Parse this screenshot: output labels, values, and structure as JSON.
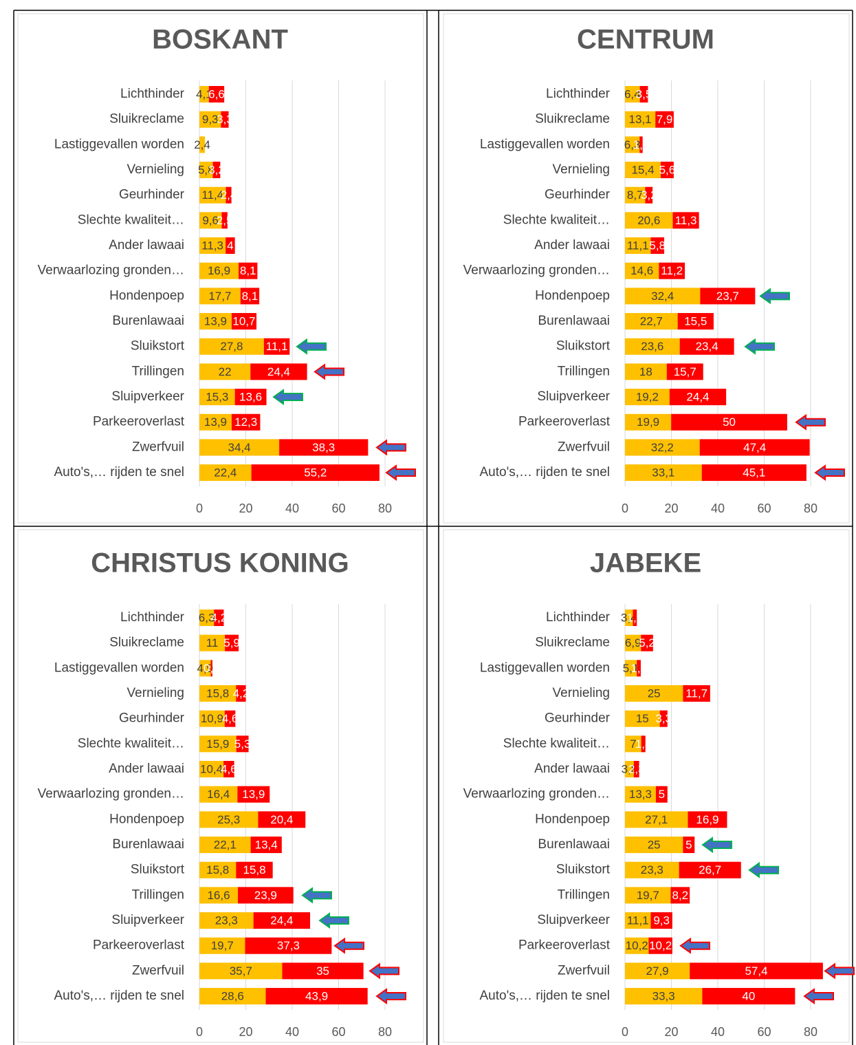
{
  "chart_data": [
    {
      "type": "stacked-bar-horizontal",
      "title": "BOSKANT",
      "categories": [
        "Lichthinder",
        "Sluikreclame",
        "Lastiggevallen worden",
        "Vernieling",
        "Geurhinder",
        "Slechte kwaliteit…",
        "Ander lawaai",
        "Verwaarlozing gronden…",
        "Hondenpoep",
        "Burenlawaai",
        "Sluikstort",
        "Trillingen",
        "Sluipverkeer",
        "Parkeeroverlast",
        "Zwerfvuil",
        "Auto's,… rijden te snel"
      ],
      "series": [
        {
          "color": "#FFC000",
          "values": [
            4.1,
            9.3,
            2.4,
            5.8,
            11.4,
            9.6,
            11.3,
            16.9,
            17.7,
            13.9,
            27.8,
            22,
            15.3,
            13.9,
            34.4,
            22.4
          ],
          "value_labels": [
            "4,1",
            "9,3",
            "2,4",
            "5,8",
            "11,4",
            "9,6",
            "11,3",
            "16,9",
            "17,7",
            "13,9",
            "27,8",
            "22",
            "15,3",
            "13,9",
            "34,4",
            "22,4"
          ]
        },
        {
          "color": "#FF0000",
          "values": [
            6.6,
            3.3,
            null,
            3.2,
            2.4,
            2.5,
            4,
            8.1,
            8.1,
            10.7,
            11.1,
            24.4,
            13.6,
            12.3,
            38.3,
            55.2
          ],
          "value_labels": [
            "6,6",
            "3,3",
            null,
            "3,2",
            "2,4",
            "2,5",
            "4",
            "8,1",
            "8,1",
            "10,7",
            "11,1",
            "24,4",
            "13,6",
            "12,3",
            "38,3",
            "55,2"
          ]
        }
      ],
      "xlim": [
        0,
        90
      ],
      "xticks": [
        0,
        20,
        40,
        60,
        80
      ],
      "grid": true
    },
    {
      "type": "stacked-bar-horizontal",
      "title": "CENTRUM",
      "categories": [
        "Lichthinder",
        "Sluikreclame",
        "Lastiggevallen worden",
        "Vernieling",
        "Geurhinder",
        "Slechte kwaliteit…",
        "Ander lawaai",
        "Verwaarlozing gronden…",
        "Hondenpoep",
        "Burenlawaai",
        "Sluikstort",
        "Trillingen",
        "Sluipverkeer",
        "Parkeeroverlast",
        "Zwerfvuil",
        "Auto's,… rijden te snel"
      ],
      "series": [
        {
          "color": "#FFC000",
          "values": [
            6.4,
            13.1,
            6.3,
            15.4,
            8.7,
            20.6,
            11.1,
            14.6,
            32.4,
            22.7,
            23.6,
            18,
            19.2,
            19.9,
            32.2,
            33.1
          ],
          "value_labels": [
            "6,4",
            "13,1",
            "6,3",
            "15,4",
            "8,7",
            "20,6",
            "11,1",
            "14,6",
            "32,4",
            "22,7",
            "23,6",
            "18",
            "19,2",
            "19,9",
            "32,2",
            "33,1"
          ]
        },
        {
          "color": "#FF0000",
          "values": [
            3.5,
            7.9,
            1.3,
            5.6,
            3.2,
            11.3,
            5.8,
            11.2,
            23.7,
            15.5,
            23.4,
            15.7,
            24.4,
            50,
            47.4,
            45.1
          ],
          "value_labels": [
            "3,5",
            "7,9",
            "1,3",
            "5,6",
            "3,2",
            "11,3",
            "5,8",
            "11,2",
            "23,7",
            "15,5",
            "23,4",
            "15,7",
            "24,4",
            "50",
            "47,4",
            "45,1"
          ]
        }
      ],
      "xlim": [
        0,
        90
      ],
      "xticks": [
        0,
        20,
        40,
        60,
        80
      ],
      "grid": true
    },
    {
      "type": "stacked-bar-horizontal",
      "title": "CHRISTUS KONING",
      "categories": [
        "Lichthinder",
        "Sluikreclame",
        "Lastiggevallen worden",
        "Vernieling",
        "Geurhinder",
        "Slechte kwaliteit…",
        "Ander lawaai",
        "Verwaarlozing gronden…",
        "Hondenpoep",
        "Burenlawaai",
        "Sluikstort",
        "Trillingen",
        "Sluipverkeer",
        "Parkeeroverlast",
        "Zwerfvuil",
        "Auto's,… rijden te snel"
      ],
      "series": [
        {
          "color": "#FFC000",
          "values": [
            6.3,
            11,
            4.9,
            15.8,
            10.9,
            15.9,
            10.4,
            16.4,
            25.3,
            22.1,
            15.8,
            16.6,
            23.3,
            19.7,
            35.7,
            28.6
          ],
          "value_labels": [
            "6,3",
            "11",
            "4,9",
            "15,8",
            "10,9",
            "15,9",
            "10,4",
            "16,4",
            "25,3",
            "22,1",
            "15,8",
            "16,6",
            "23,3",
            "19,7",
            "35,7",
            "28,6"
          ]
        },
        {
          "color": "#FF0000",
          "values": [
            4.2,
            5.9,
            0.7,
            4.2,
            4.6,
            5.3,
            4.6,
            13.9,
            20.4,
            13.4,
            15.8,
            23.9,
            24.4,
            37.3,
            35,
            43.9
          ],
          "value_labels": [
            "4,2",
            "5,9",
            "0,7",
            "4,2",
            "4,6",
            "5,3",
            "4,6",
            "13,9",
            "20,4",
            "13,4",
            "15,8",
            "23,9",
            "24,4",
            "37,3",
            "35",
            "43,9"
          ]
        }
      ],
      "xlim": [
        0,
        90
      ],
      "xticks": [
        0,
        20,
        40,
        60,
        80
      ],
      "grid": true
    },
    {
      "type": "stacked-bar-horizontal",
      "title": "JABEKE",
      "categories": [
        "Lichthinder",
        "Sluikreclame",
        "Lastiggevallen worden",
        "Vernieling",
        "Geurhinder",
        "Slechte kwaliteit…",
        "Ander lawaai",
        "Verwaarlozing gronden…",
        "Hondenpoep",
        "Burenlawaai",
        "Sluikstort",
        "Trillingen",
        "Sluipverkeer",
        "Parkeeroverlast",
        "Zwerfvuil",
        "Auto's,… rijden te snel"
      ],
      "series": [
        {
          "color": "#FFC000",
          "values": [
            3.4,
            6.9,
            5.1,
            25,
            15,
            7,
            3.8,
            13.3,
            27.1,
            25,
            23.3,
            19.7,
            11.1,
            10.2,
            27.9,
            33.3
          ],
          "value_labels": [
            "3,4",
            "6,9",
            "5,1",
            "25",
            "15",
            "7",
            "3,8",
            "13,3",
            "27,1",
            "25",
            "23,3",
            "19,7",
            "11,1",
            "10,2",
            "27,9",
            "33,3"
          ]
        },
        {
          "color": "#FF0000",
          "values": [
            1.7,
            5.2,
            1.7,
            11.7,
            3.3,
            1.8,
            2.3,
            5,
            16.9,
            5,
            26.7,
            8.2,
            9.3,
            10.2,
            57.4,
            40
          ],
          "value_labels": [
            "1,7",
            "5,2",
            "1,7",
            "11,7",
            "3,3",
            "1,8",
            "2,3",
            "5",
            "16,9",
            "5",
            "26,7",
            "8,2",
            "9,3",
            "10,2",
            "57,4",
            "40"
          ]
        }
      ],
      "xlim": [
        0,
        90
      ],
      "xticks": [
        0,
        20,
        40,
        60,
        80
      ],
      "grid": true
    }
  ]
}
